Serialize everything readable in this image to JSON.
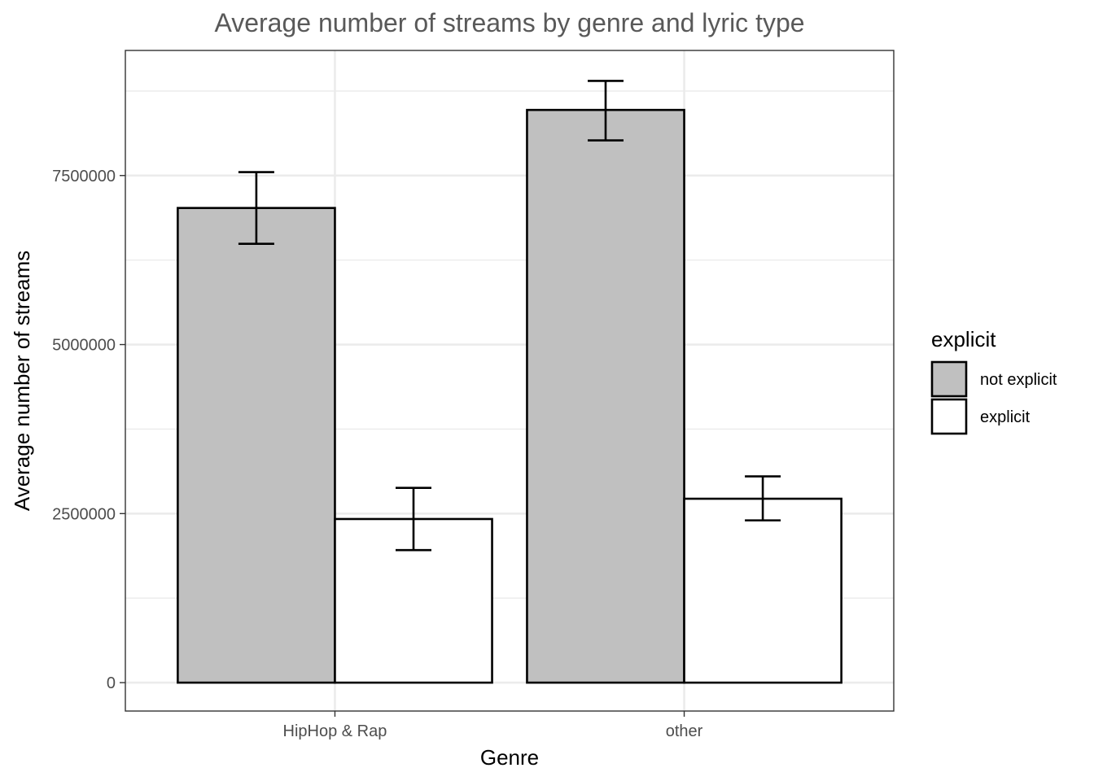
{
  "chart_data": {
    "type": "bar",
    "title": "Average number of streams by genre and lyric type",
    "xlabel": "Genre",
    "ylabel": "Average number of streams",
    "categories": [
      "HipHop & Rap",
      "other"
    ],
    "series": [
      {
        "name": "not explicit",
        "color": "#c0c0c0",
        "values": [
          7020000,
          8470000
        ],
        "error_low": [
          6490000,
          8020000
        ],
        "error_high": [
          7550000,
          8900000
        ]
      },
      {
        "name": "explicit",
        "color": "#ffffff",
        "values": [
          2420000,
          2720000
        ],
        "error_low": [
          1960000,
          2400000
        ],
        "error_high": [
          2880000,
          3050000
        ]
      }
    ],
    "ylim": [
      -420000,
      9350000
    ],
    "y_ticks": [
      0,
      2500000,
      5000000,
      7500000
    ],
    "y_tick_labels": [
      "0",
      "2500000",
      "5000000",
      "7500000"
    ],
    "grid": true,
    "legend": {
      "title": "explicit",
      "placement": "right"
    }
  }
}
